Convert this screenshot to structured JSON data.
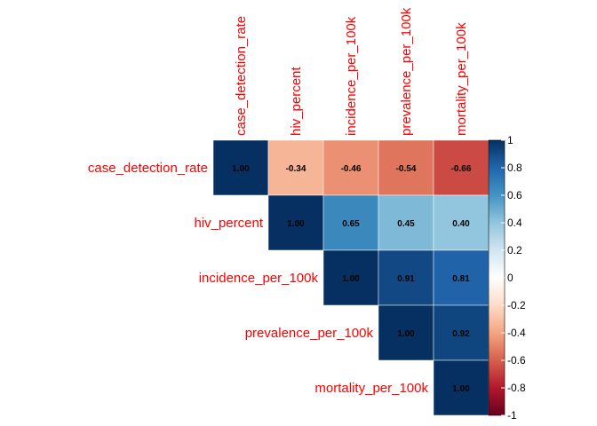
{
  "chart_data": {
    "type": "heatmap",
    "subtype": "correlation-matrix-upper-triangle",
    "variables": [
      "case_detection_rate",
      "hiv_percent",
      "incidence_per_100k",
      "prevalence_per_100k",
      "mortality_per_100k"
    ],
    "matrix": [
      [
        1.0,
        -0.34,
        -0.46,
        -0.54,
        -0.66
      ],
      [
        null,
        1.0,
        0.65,
        0.45,
        0.4
      ],
      [
        null,
        null,
        1.0,
        0.91,
        0.81
      ],
      [
        null,
        null,
        null,
        1.0,
        0.92
      ],
      [
        null,
        null,
        null,
        null,
        1.0
      ]
    ],
    "cell_labels": [
      [
        "1.00",
        "-0.34",
        "-0.46",
        "-0.54",
        "-0.66"
      ],
      [
        null,
        "1.00",
        "0.65",
        "0.45",
        "0.40"
      ],
      [
        null,
        null,
        "1.00",
        "0.91",
        "0.81"
      ],
      [
        null,
        null,
        null,
        "1.00",
        "0.92"
      ],
      [
        null,
        null,
        null,
        null,
        "1.00"
      ]
    ],
    "colorbar": {
      "range": [
        -1,
        1
      ],
      "ticks": [
        "1",
        "0.8",
        "0.6",
        "0.4",
        "0.2",
        "0",
        "-0.2",
        "-0.4",
        "-0.6",
        "-0.8",
        "-1"
      ],
      "palette": [
        "#67001F",
        "#B2182B",
        "#D6604D",
        "#F4A582",
        "#FDDBC7",
        "#FFFFFF",
        "#D1E5F0",
        "#92C5DE",
        "#4393C3",
        "#2166AC",
        "#053061"
      ]
    },
    "colors": {
      "labels": "#FF0000",
      "values": "#000000"
    }
  }
}
